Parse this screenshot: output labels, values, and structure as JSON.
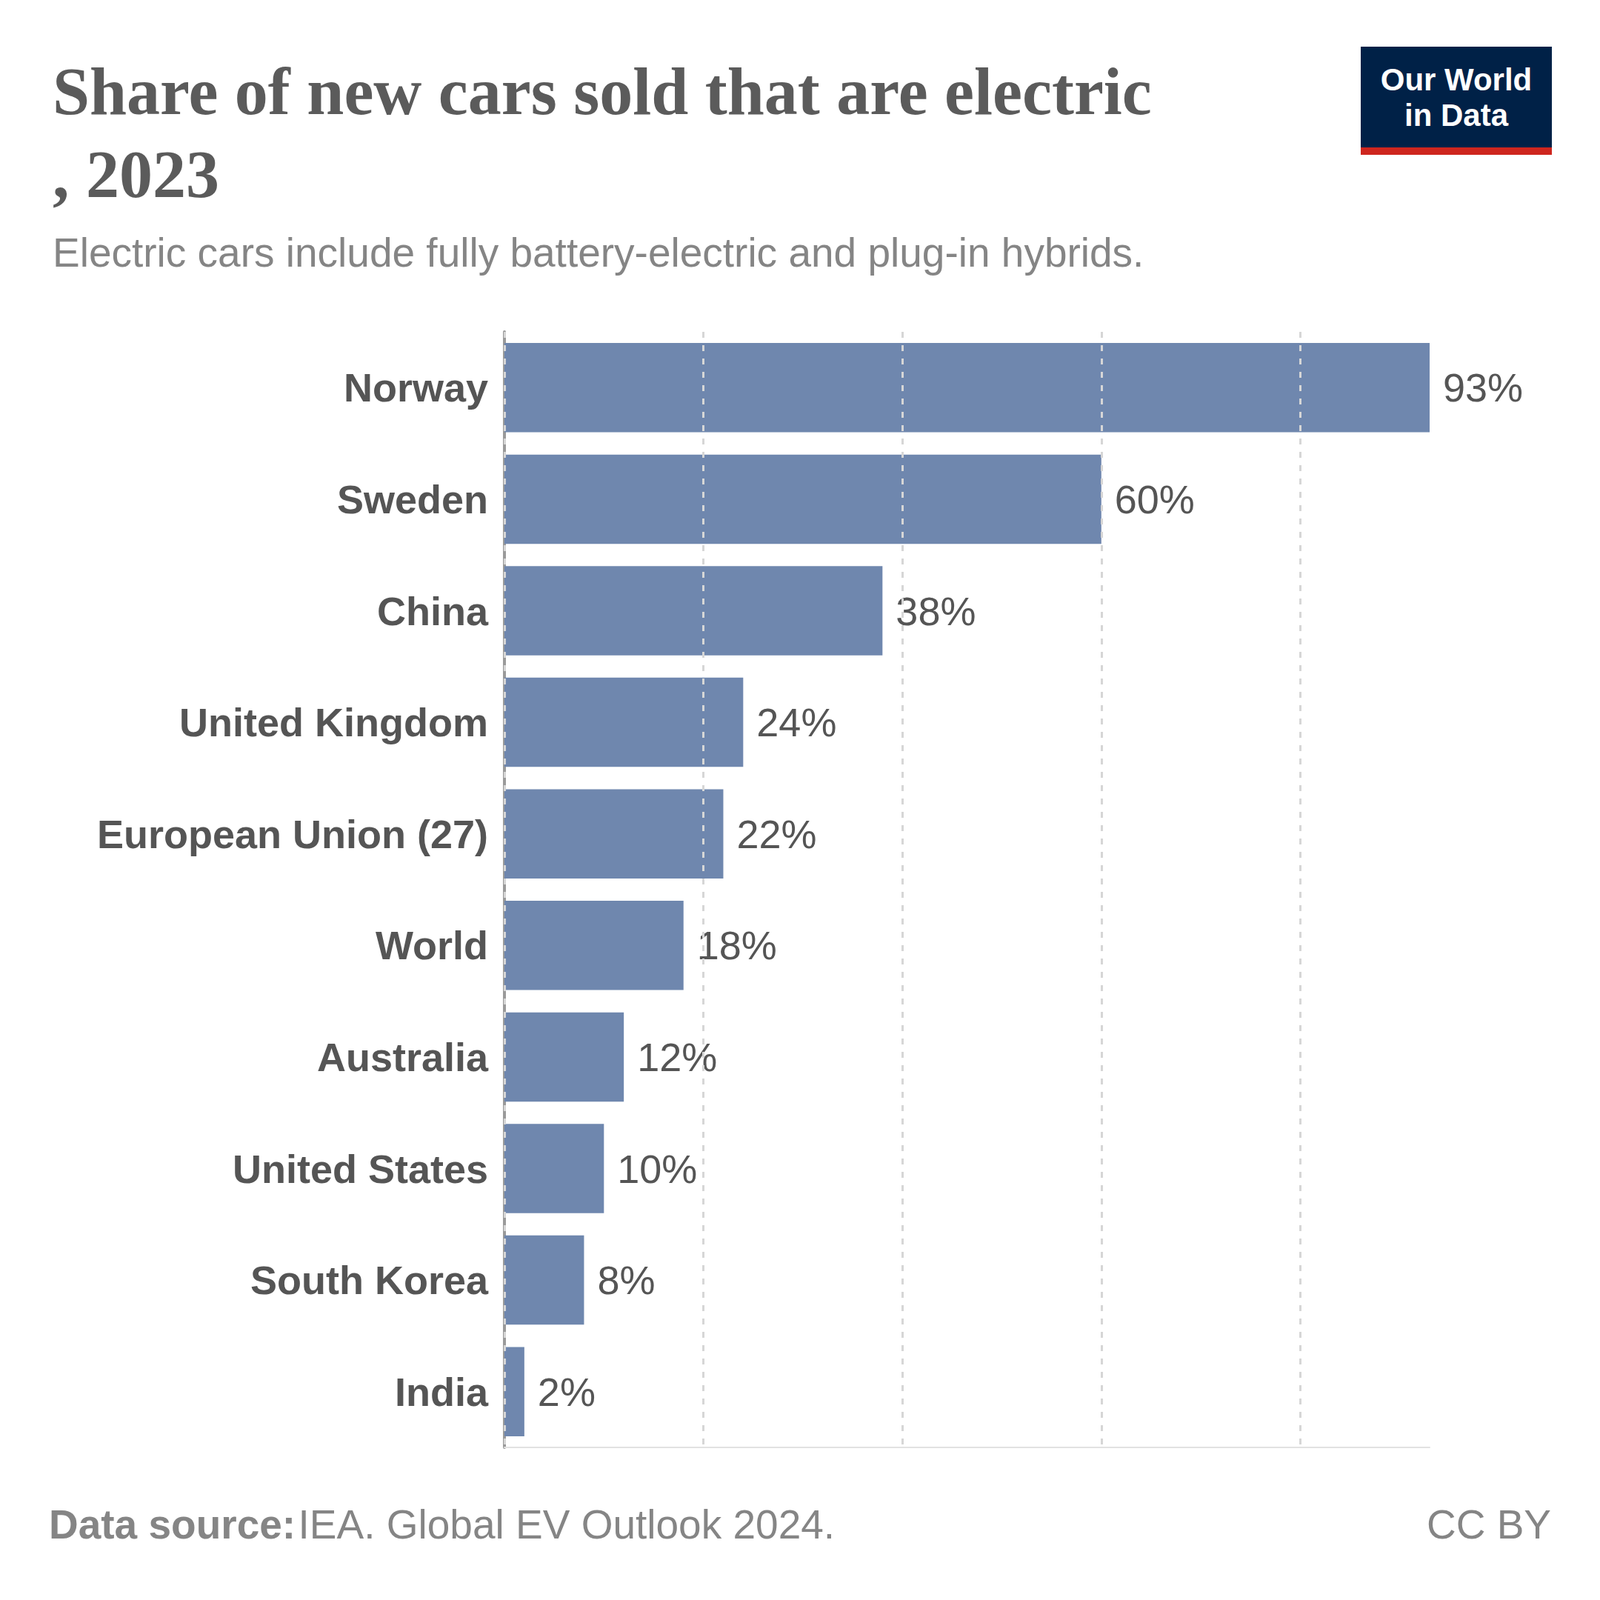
{
  "chart_data": {
    "type": "bar",
    "orientation": "horizontal",
    "title": "Share of new cars sold that are electric, 2023",
    "subtitle": "Electric cars include fully battery-electric and plug-in hybrids.",
    "categories": [
      "Norway",
      "Sweden",
      "China",
      "United Kingdom",
      "European Union (27)",
      "World",
      "Australia",
      "United States",
      "South Korea",
      "India"
    ],
    "values": [
      93,
      60,
      38,
      24,
      22,
      18,
      12,
      10,
      8,
      2
    ],
    "value_labels": [
      "93%",
      "60%",
      "38%",
      "24%",
      "22%",
      "18%",
      "12%",
      "10%",
      "8%",
      "2%"
    ],
    "color": "#6f87ae",
    "xlim": [
      0,
      93
    ],
    "xticks": [
      0,
      20,
      40,
      60,
      80
    ],
    "grid": true,
    "data_labels": true,
    "tick_labels": "y",
    "source_label": "Data source:",
    "source": "IEA. Global EV Outlook 2024.",
    "license": "CC BY",
    "logo": [
      "Our World",
      "in Data"
    ]
  }
}
